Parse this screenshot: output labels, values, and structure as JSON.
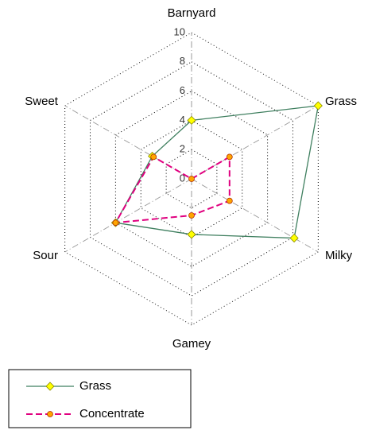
{
  "chart_data": {
    "type": "radar",
    "categories": [
      "Barnyard",
      "Grass",
      "Milky",
      "Gamey",
      "Sour",
      "Sweet"
    ],
    "series": [
      {
        "name": "Grass",
        "color": "#3f7f5f",
        "marker": "diamond",
        "marker_color": "#ffff00",
        "line_style": "solid",
        "values": [
          4,
          10,
          8.1,
          3.8,
          6,
          3.1
        ]
      },
      {
        "name": "Concentrate",
        "color": "#e0007f",
        "marker": "circle",
        "marker_color": "#ffa500",
        "line_style": "dashed",
        "values": [
          0,
          3,
          3,
          2.5,
          6,
          3
        ]
      }
    ],
    "ylim": [
      0,
      10
    ],
    "yticks": [
      0,
      2,
      4,
      6,
      8,
      10
    ],
    "grid": true
  }
}
